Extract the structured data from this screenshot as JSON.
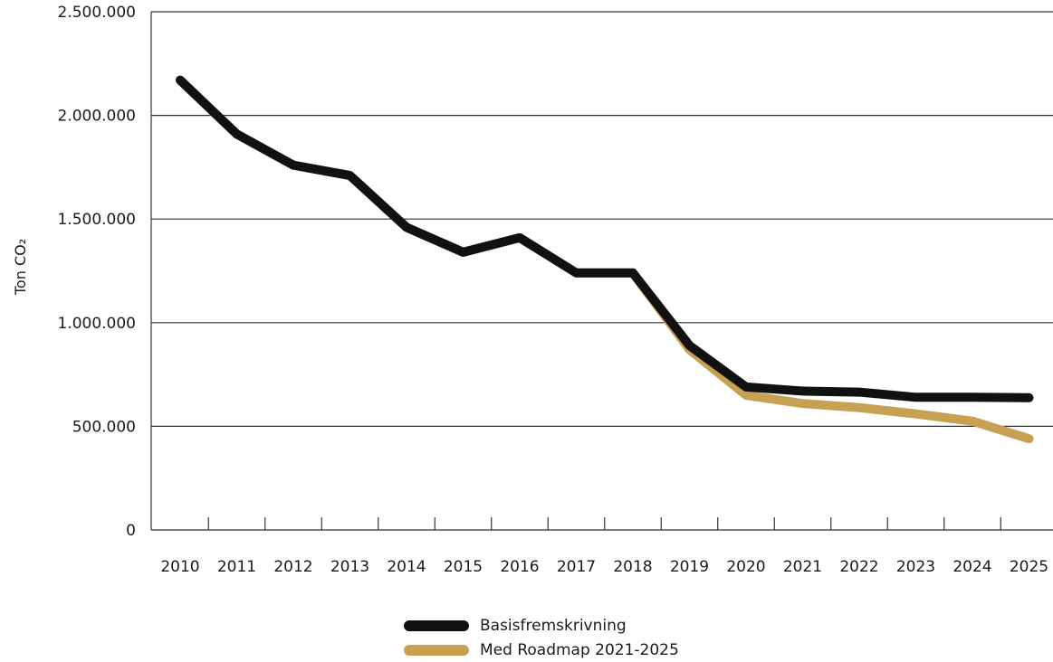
{
  "chart_data": {
    "type": "line",
    "ylabel": "Ton CO₂",
    "xlabel": "",
    "title": "",
    "categories": [
      "2010",
      "2011",
      "2012",
      "2013",
      "2014",
      "2015",
      "2016",
      "2017",
      "2018",
      "2019",
      "2020",
      "2021",
      "2022",
      "2023",
      "2024",
      "2025"
    ],
    "ylim": [
      0,
      2500000
    ],
    "yticks": [
      0,
      500000,
      1000000,
      1500000,
      2000000,
      2500000
    ],
    "ytick_labels": [
      "0",
      "500.000",
      "1.000.000",
      "1.500.000",
      "2.000.000",
      "2.500.000"
    ],
    "grid": "horizontal",
    "legend_position": "bottom-center",
    "series": [
      {
        "name": "Med Roadmap 2021-2025",
        "color": "#c8a052",
        "values": [
          2170000,
          1910000,
          1760000,
          1710000,
          1460000,
          1340000,
          1410000,
          1240000,
          1240000,
          870000,
          650000,
          610000,
          590000,
          560000,
          525000,
          440000
        ]
      },
      {
        "name": "Basisfremskrivning",
        "color": "#111111",
        "values": [
          2170000,
          1910000,
          1760000,
          1710000,
          1460000,
          1340000,
          1410000,
          1240000,
          1240000,
          890000,
          690000,
          670000,
          665000,
          640000,
          640000,
          638000
        ]
      }
    ]
  },
  "legend": {
    "items": [
      {
        "label": "Basisfremskrivning",
        "color": "#111111"
      },
      {
        "label": "Med Roadmap 2021-2025",
        "color": "#c8a052"
      }
    ]
  }
}
